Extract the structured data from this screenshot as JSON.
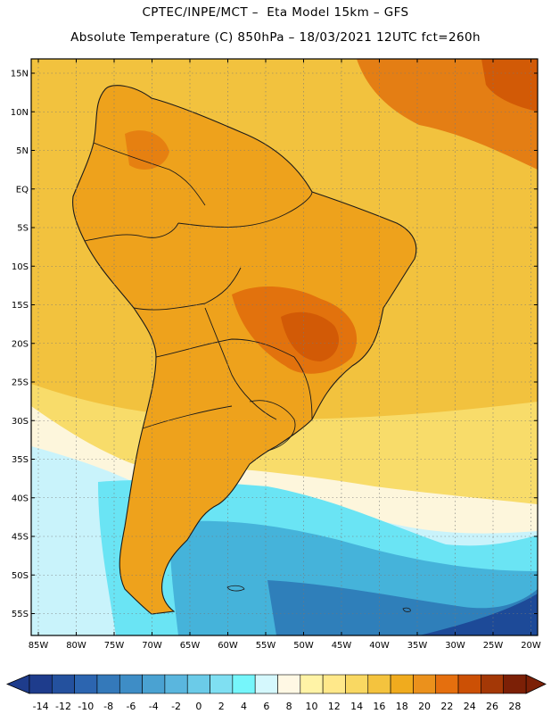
{
  "header": {
    "line1": "CPTEC/INPE/MCT –  Eta Model 15km – GFS",
    "line2": "Absolute Temperature (C) 850hPa – 18/03/2021 12UTC fct=260h"
  },
  "axes": {
    "lat_labels": [
      "15N",
      "10N",
      "5N",
      "EQ",
      "5S",
      "10S",
      "15S",
      "20S",
      "25S",
      "30S",
      "35S",
      "40S",
      "45S",
      "50S",
      "55S"
    ],
    "lon_labels": [
      "85W",
      "80W",
      "75W",
      "70W",
      "65W",
      "60W",
      "55W",
      "50W",
      "45W",
      "40W",
      "35W",
      "30W",
      "25W",
      "20W"
    ]
  },
  "colorbar": {
    "labels": [
      "-14",
      "-12",
      "-10",
      "-8",
      "-6",
      "-4",
      "-2",
      "0",
      "2",
      "4",
      "6",
      "8",
      "10",
      "12",
      "14",
      "16",
      "18",
      "20",
      "22",
      "24",
      "26",
      "28"
    ],
    "colors": [
      "#1e3c8c",
      "#24519e",
      "#2c65b0",
      "#3479ba",
      "#3e8dc6",
      "#4aa2d2",
      "#5ab6de",
      "#6bcbe8",
      "#7fdff2",
      "#76f6fb",
      "#d5f8fd",
      "#fff8e4",
      "#fff3a6",
      "#ffe88a",
      "#f9d862",
      "#f4c33e",
      "#f0ab1e",
      "#eb911c",
      "#e56f0e",
      "#cc5005",
      "#a43806",
      "#7c2006"
    ]
  },
  "map_colors": {
    "ocean_warm": "#f2c23e",
    "land_warm": "#eea21c",
    "hot": "#e2720d",
    "hottest": "#d25a06",
    "mild": "#f8dc6a",
    "cool_pale": "#fdf6dc",
    "cyan_light": "#c9f3fb",
    "cyan": "#6ae4f4",
    "blue_mid": "#45b3da",
    "blue_dark": "#2f7fba",
    "blue_darkest": "#1d4a98",
    "border": "#1a1a1a"
  }
}
